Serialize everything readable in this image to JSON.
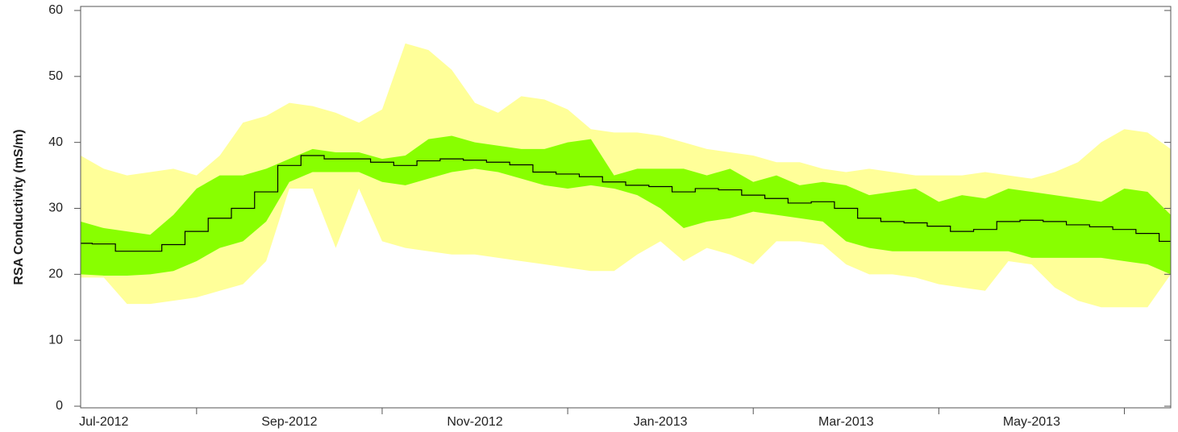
{
  "chart_data": {
    "type": "band-line",
    "y_label": "RSA Conductivity (mS/m)",
    "ylim": [
      0,
      60
    ],
    "yticks": [
      0,
      10,
      20,
      30,
      40,
      50,
      60
    ],
    "categories": [
      null,
      "Jul-2012",
      null,
      null,
      null,
      null,
      null,
      null,
      null,
      "Sep-2012",
      null,
      null,
      null,
      null,
      null,
      null,
      null,
      "Nov-2012",
      null,
      null,
      null,
      null,
      null,
      null,
      null,
      "Jan-2013",
      null,
      null,
      null,
      null,
      null,
      null,
      null,
      "Mar-2013",
      null,
      null,
      null,
      null,
      null,
      null,
      null,
      "May-2013",
      null,
      null,
      null,
      null,
      null,
      null
    ],
    "bands": [
      {
        "color": "#ffff99",
        "lower": [
          19.5,
          19.5,
          15.5,
          15.5,
          16,
          16.5,
          17.5,
          18.5,
          22,
          33,
          33,
          24,
          33,
          25,
          24,
          23.5,
          23,
          23,
          22.5,
          22,
          21.5,
          21,
          20.5,
          20.5,
          23,
          25,
          22,
          24,
          23,
          21.5,
          25,
          25,
          24.5,
          21.5,
          20,
          20,
          19.5,
          18.5,
          18,
          17.5,
          22,
          21.5,
          18,
          16,
          15,
          15,
          15,
          20
        ],
        "upper": [
          38,
          36,
          35,
          35.5,
          36,
          35,
          38,
          43,
          44,
          46,
          45.5,
          44.5,
          43,
          45,
          55,
          54,
          51,
          46,
          44.5,
          47,
          46.5,
          45,
          42,
          41.5,
          41.5,
          41,
          40,
          39,
          38.5,
          38,
          37,
          37,
          36,
          35.5,
          36,
          35.5,
          35,
          35,
          35,
          35.5,
          35,
          34.5,
          35.5,
          37,
          40,
          42,
          41.5,
          39
        ]
      },
      {
        "color": "#88ff00",
        "lower": [
          20,
          19.8,
          19.8,
          20,
          20.5,
          22,
          24,
          25,
          28,
          34,
          35.5,
          35.5,
          35.5,
          34,
          33.5,
          34.5,
          35.5,
          36,
          35.5,
          34.5,
          33.5,
          33,
          33.5,
          33,
          32,
          30,
          27,
          28,
          28.5,
          29.5,
          29,
          28.5,
          28,
          25,
          24,
          23.5,
          23.5,
          23.5,
          23.5,
          23.5,
          23.5,
          22.5,
          22.5,
          22.5,
          22.5,
          22,
          21.5,
          20
        ],
        "upper": [
          28,
          27,
          26.5,
          26,
          29,
          33,
          35,
          35,
          36,
          37.5,
          39,
          38.5,
          38.5,
          37.5,
          38,
          40.5,
          41,
          40,
          39.5,
          39,
          39,
          40,
          40.5,
          35,
          36,
          36,
          36,
          35,
          36,
          34,
          35,
          33.5,
          34,
          33.5,
          32,
          32.5,
          33,
          31,
          32,
          31.5,
          33,
          32.5,
          32,
          31.5,
          31,
          33,
          32.5,
          29
        ]
      }
    ],
    "line": {
      "color": "#000000",
      "values": [
        24.7,
        24.6,
        23.5,
        23.5,
        24.5,
        26.5,
        28.5,
        30,
        32.5,
        36.5,
        38,
        37.5,
        37.5,
        37,
        36.5,
        37.2,
        37.5,
        37.3,
        37,
        36.6,
        35.5,
        35.2,
        34.8,
        34,
        33.5,
        33.3,
        32.5,
        33,
        32.8,
        32,
        31.5,
        30.8,
        31,
        30,
        28.5,
        28,
        27.8,
        27.3,
        26.5,
        26.8,
        28,
        28.2,
        28,
        27.5,
        27.2,
        26.8,
        26.2,
        25
      ]
    }
  }
}
